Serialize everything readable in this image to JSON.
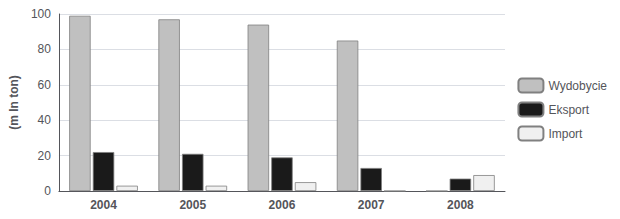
{
  "chart_data": {
    "type": "bar",
    "categories": [
      "2004",
      "2005",
      "2006",
      "2007",
      "2008"
    ],
    "series": [
      {
        "name": "Wydobycie",
        "color": "#c0c0c0",
        "values": [
          99,
          97,
          94,
          85,
          0
        ]
      },
      {
        "name": "Eksport",
        "color": "#1a1a1a",
        "values": [
          22,
          21,
          19,
          13,
          7
        ]
      },
      {
        "name": "Import",
        "color": "#f0f0f0",
        "values": [
          3,
          3,
          5,
          0,
          9
        ]
      }
    ],
    "ylabel": "(m ln ton)",
    "ylim": [
      0,
      100
    ],
    "yticks": [
      0,
      20,
      40,
      60,
      80,
      100
    ],
    "grid": true,
    "legend": "right"
  }
}
